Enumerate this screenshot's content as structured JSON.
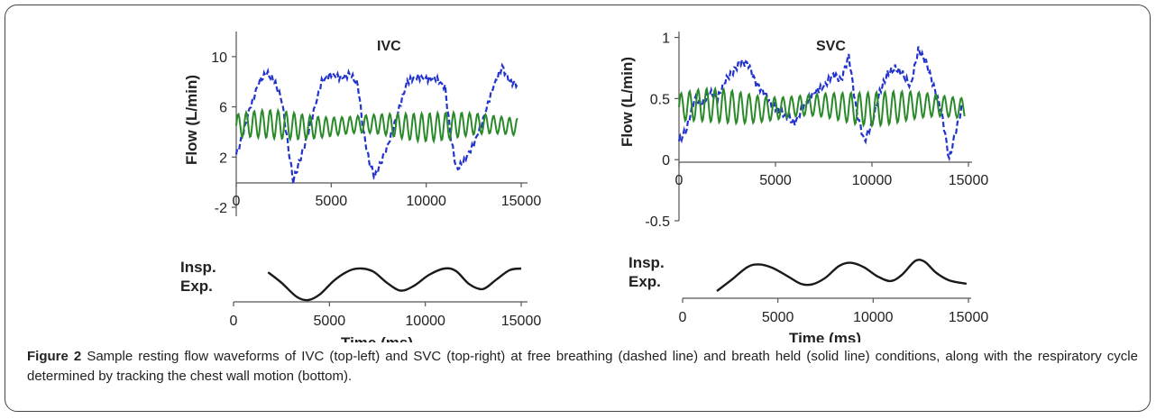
{
  "caption": {
    "label": "Figure 2",
    "text": "Sample resting flow waveforms of IVC (top-left) and SVC (top-right) at free breathing (dashed line) and breath held (solid line) conditions, along with the respiratory cycle determined by tracking the chest wall motion (bottom)."
  },
  "colors": {
    "dashed": "#2233cc",
    "solid": "#2a8a2a",
    "resp": "#1a1a1a",
    "axis": "#555555"
  },
  "chart_data": [
    {
      "id": "ivc-flow",
      "type": "line",
      "title": "IVC",
      "ylabel": "Flow (L/min)",
      "xlabel": "",
      "xlim": [
        0,
        15000
      ],
      "ylim": [
        -2,
        12
      ],
      "xticks": [
        0,
        5000,
        10000,
        15000
      ],
      "yticks": [
        -2,
        2,
        6,
        10
      ],
      "series": [
        {
          "style": "dashed",
          "x": [
            0,
            300,
            700,
            1200,
            1600,
            2000,
            2400,
            2700,
            3000,
            3300,
            3600,
            4000,
            4500,
            5000,
            5500,
            6000,
            6400,
            6700,
            7000,
            7300,
            7600,
            8000,
            8500,
            9000,
            9500,
            10000,
            10500,
            11000,
            11300,
            11600,
            12000,
            12500,
            13000,
            13500,
            14000,
            14400,
            14800
          ],
          "y": [
            2.2,
            3.5,
            5.8,
            8.0,
            8.7,
            8.1,
            6.5,
            3.2,
            0.1,
            1.5,
            3.0,
            5.2,
            8.0,
            8.6,
            8.3,
            8.6,
            7.8,
            4.0,
            1.6,
            0.4,
            1.5,
            3.0,
            5.5,
            8.0,
            8.4,
            8.2,
            8.3,
            7.5,
            3.5,
            1.0,
            1.7,
            3.0,
            5.0,
            7.5,
            9.2,
            8.0,
            7.8
          ]
        },
        {
          "style": "solid",
          "period": 420,
          "mean": 4.5,
          "amplitude": 0.9,
          "x_range": [
            0,
            14800
          ]
        }
      ]
    },
    {
      "id": "svc-flow",
      "type": "line",
      "title": "SVC",
      "ylabel": "Flow (L/min)",
      "xlabel": "",
      "xlim": [
        0,
        15000
      ],
      "ylim": [
        -0.5,
        1.1
      ],
      "xticks": [
        0,
        5000,
        10000,
        15000
      ],
      "yticks": [
        -0.5,
        0,
        0.5,
        1
      ],
      "ytick_labels": [
        "-0.5",
        "0",
        "0.5",
        "1"
      ],
      "series": [
        {
          "style": "dashed",
          "x": [
            0,
            400,
            800,
            1200,
            1600,
            2000,
            2400,
            2800,
            3200,
            3600,
            4000,
            4400,
            4800,
            5200,
            5600,
            6000,
            6500,
            7000,
            7500,
            8000,
            8400,
            8800,
            9200,
            9600,
            10000,
            10400,
            10800,
            11200,
            11600,
            12000,
            12400,
            12800,
            13200,
            13600,
            14000,
            14300,
            14700
          ],
          "y": [
            0.15,
            0.25,
            0.5,
            0.45,
            0.55,
            0.5,
            0.65,
            0.72,
            0.8,
            0.78,
            0.62,
            0.55,
            0.45,
            0.4,
            0.35,
            0.3,
            0.45,
            0.55,
            0.6,
            0.7,
            0.65,
            0.85,
            0.4,
            0.15,
            0.3,
            0.55,
            0.7,
            0.75,
            0.7,
            0.6,
            0.9,
            0.8,
            0.6,
            0.4,
            0.0,
            0.2,
            0.45
          ]
        },
        {
          "style": "solid",
          "period": 440,
          "mean": 0.43,
          "amplitude": 0.11,
          "x_range": [
            0,
            14800
          ]
        }
      ]
    },
    {
      "id": "ivc-resp",
      "type": "line",
      "title": "",
      "xlabel": "Time (ms)",
      "ylabels": [
        "Insp.",
        "Exp."
      ],
      "xlim": [
        0,
        15000
      ],
      "xticks": [
        0,
        5000,
        10000,
        15000
      ],
      "series": [
        {
          "style": "solid",
          "x": [
            1800,
            2500,
            3300,
            3900,
            4500,
            5300,
            6100,
            6700,
            7300,
            8000,
            8700,
            9400,
            10200,
            11000,
            11600,
            12300,
            13000,
            13700,
            14400,
            15000
          ],
          "y": [
            0.88,
            0.55,
            0.1,
            0.0,
            0.18,
            0.65,
            0.95,
            1.0,
            0.9,
            0.55,
            0.3,
            0.45,
            0.8,
            1.0,
            0.92,
            0.5,
            0.35,
            0.65,
            0.95,
            1.0
          ]
        }
      ]
    },
    {
      "id": "svc-resp",
      "type": "line",
      "title": "",
      "xlabel": "Time (ms)",
      "ylabels": [
        "Insp.",
        "Exp."
      ],
      "xlim": [
        0,
        15000
      ],
      "xticks": [
        0,
        5000,
        10000,
        15000
      ],
      "series": [
        {
          "style": "solid",
          "x": [
            1800,
            2600,
            3400,
            4000,
            4700,
            5500,
            6200,
            6800,
            7500,
            8200,
            8800,
            9500,
            10200,
            10900,
            11500,
            12200,
            12700,
            13300,
            14000,
            14900
          ],
          "y": [
            0.0,
            0.35,
            0.72,
            0.8,
            0.7,
            0.45,
            0.22,
            0.2,
            0.4,
            0.75,
            0.85,
            0.72,
            0.45,
            0.3,
            0.48,
            0.9,
            0.88,
            0.55,
            0.32,
            0.22
          ]
        }
      ]
    }
  ]
}
